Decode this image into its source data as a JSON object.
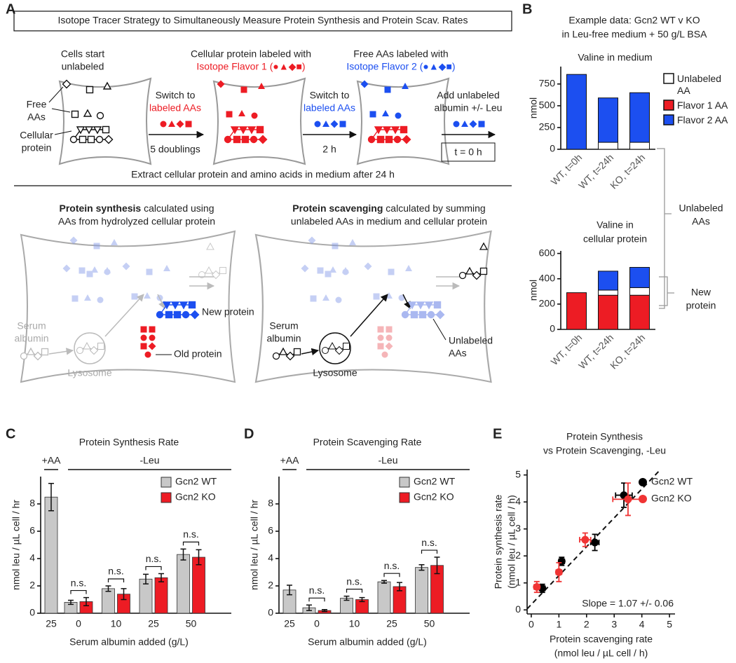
{
  "panel_labels": [
    "A",
    "B",
    "C",
    "D",
    "E"
  ],
  "panel_a": {
    "title": "Isotope Tracer Strategy to Simultaneously Measure Protein Synthesis and Protein Scav. Rates",
    "start": [
      "Cells start",
      "unlabeled"
    ],
    "free_aas": [
      "Free",
      "AAs"
    ],
    "cellular_protein": [
      "Cellular",
      "protein"
    ],
    "step1": {
      "top": "Switch to",
      "colored": "labeled AAs",
      "bottom": "5 doublings"
    },
    "state2": [
      "Cellular protein labeled with",
      "Isotope Flavor 1 (●▲◆■)"
    ],
    "step2": {
      "top": "Switch to",
      "colored": "labeled AAs",
      "bottom": "2 h"
    },
    "state3": [
      "Free AAs labeled with",
      "Isotope Flavor 2 (●▲◆■)"
    ],
    "step3": {
      "top": [
        "Add unlabeled",
        "albumin +/- Leu"
      ],
      "box": "t = 0 h"
    },
    "extract": "Extract cellular protein and amino acids in medium after 24 h",
    "synthesis": {
      "bold": "Protein synthesis",
      "rest": " calculated using",
      "line2": "AAs from hydrolyzed cellular protein"
    },
    "scavenging": {
      "bold": "Protein scavenging",
      "rest": " calculated by summing",
      "line2": "unlabeled AAs in medium and cellular protein"
    },
    "left_cell": {
      "serum": [
        "Serum",
        "albumin"
      ],
      "lysosome": "Lysosome",
      "new": "New protein",
      "old": "Old protein"
    },
    "right_cell": {
      "serum": [
        "Serum",
        "albumin"
      ],
      "lysosome": "Lysosome",
      "unlabeled": [
        "Unlabeled",
        "AAs"
      ]
    }
  },
  "chart_data": [
    {
      "type": "stacked-bar",
      "header": [
        "Example data: Gcn2 WT v KO",
        "in Leu-free medium + 50 g/L BSA"
      ],
      "title": "Valine in medium",
      "categories": [
        "WT, t=0h",
        "WT, t=24h",
        "KO, t=24h"
      ],
      "series": [
        {
          "name": "Unlabeled AA",
          "color": "#ffffff",
          "values": [
            0,
            80,
            80
          ]
        },
        {
          "name": "Flavor 1 AA",
          "color": "#ed1c24",
          "values": [
            0,
            0,
            0
          ]
        },
        {
          "name": "Flavor 2 AA",
          "color": "#1c4ff0",
          "values": [
            860,
            510,
            570
          ]
        }
      ],
      "ylabel": "nmol",
      "ylim": [
        0,
        950
      ],
      "yticks": [
        0,
        250,
        500,
        750
      ],
      "legend": "right"
    },
    {
      "type": "stacked-bar",
      "title": [
        "Valine in",
        "cellular protein"
      ],
      "categories": [
        "WT, t=0h",
        "WT, t=24h",
        "KO, t=24h"
      ],
      "series": [
        {
          "color": "#ed1c24",
          "values": [
            290,
            270,
            270
          ]
        },
        {
          "color": "#ffffff",
          "values": [
            0,
            40,
            60
          ]
        },
        {
          "color": "#1c4ff0",
          "values": [
            0,
            150,
            160
          ]
        }
      ],
      "ylabel": "nmol",
      "ylim": [
        0,
        620
      ],
      "yticks": [
        0,
        200,
        400,
        600
      ],
      "annotations": [
        [
          "Unlabeled",
          "AAs"
        ],
        [
          "New",
          "protein"
        ]
      ]
    },
    {
      "type": "bar",
      "title": "Protein Synthesis Rate",
      "group_labels": [
        "+AA",
        "-Leu"
      ],
      "categories": [
        "25",
        "0",
        "10",
        "25",
        "50"
      ],
      "series": [
        {
          "name": "Gcn2 WT",
          "color": "#c8c8c8",
          "values": [
            8.5,
            0.8,
            1.8,
            2.5,
            4.3
          ],
          "errors": [
            1.0,
            0.15,
            0.2,
            0.35,
            0.4
          ]
        },
        {
          "name": "Gcn2 KO",
          "color": "#ed1c24",
          "values": [
            null,
            0.85,
            1.4,
            2.6,
            4.1
          ],
          "errors": [
            null,
            0.3,
            0.4,
            0.3,
            0.55
          ]
        }
      ],
      "significance": [
        "n.s.",
        "n.s.",
        "n.s.",
        "n.s."
      ],
      "ylabel": "nmol leu / µL cell / hr",
      "xlabel": "Serum albumin added (g/L)",
      "ylim": [
        0,
        10
      ],
      "yticks": [
        0,
        2,
        4,
        6,
        8
      ],
      "legend": "top-right"
    },
    {
      "type": "bar",
      "title": "Protein Scavenging Rate",
      "group_labels": [
        "+AA",
        "-Leu"
      ],
      "categories": [
        "25",
        "0",
        "10",
        "25",
        "50"
      ],
      "series": [
        {
          "name": "Gcn2 WT",
          "color": "#c8c8c8",
          "values": [
            1.7,
            0.4,
            1.1,
            2.3,
            3.35
          ],
          "errors": [
            0.35,
            0.2,
            0.15,
            0.1,
            0.2
          ]
        },
        {
          "name": "Gcn2 KO",
          "color": "#ed1c24",
          "values": [
            null,
            0.2,
            1.0,
            1.95,
            3.5
          ],
          "errors": [
            null,
            0.07,
            0.15,
            0.3,
            0.6
          ]
        }
      ],
      "significance": [
        "n.s.",
        "n.s.",
        "n.s.",
        "n.s."
      ],
      "ylabel": "nmol leu / µL cell / hr",
      "xlabel": "Serum albumin added (g/L)",
      "ylim": [
        0,
        10
      ],
      "yticks": [
        0,
        2,
        4,
        6,
        8
      ],
      "legend": "top-right"
    },
    {
      "type": "scatter",
      "title": [
        "Protein Synthesis",
        "vs Protein Scavenging, -Leu"
      ],
      "series": [
        {
          "name": "Gcn2 WT",
          "color": "#000000",
          "x": [
            0.4,
            1.1,
            2.3,
            3.35
          ],
          "y": [
            0.8,
            1.8,
            2.5,
            4.25
          ],
          "xerr": [
            0.1,
            0.1,
            0.15,
            0.3
          ],
          "yerr": [
            0.15,
            0.15,
            0.3,
            0.45
          ]
        },
        {
          "name": "Gcn2 KO",
          "color": "#f03434",
          "x": [
            0.2,
            1.0,
            1.95,
            3.5
          ],
          "y": [
            0.85,
            1.4,
            2.6,
            4.1
          ],
          "xerr": [
            0.1,
            0.1,
            0.2,
            0.55
          ],
          "yerr": [
            0.2,
            0.35,
            0.25,
            0.6
          ]
        }
      ],
      "fit": {
        "slope": 1.07,
        "intercept": 0.2,
        "label": "Slope = 1.07 +/- 0.06"
      },
      "xlabel": [
        "Protein scavenging rate",
        "(nmol leu / µL cell / h)"
      ],
      "ylabel": [
        "Protein synthesis rate",
        "(nmol leu / µL cell / h)"
      ],
      "xlim": [
        -0.15,
        5.2
      ],
      "ylim": [
        -0.15,
        5.2
      ],
      "xticks": [
        0,
        1,
        2,
        3,
        4,
        5
      ],
      "yticks": [
        0,
        1,
        2,
        3,
        4,
        5
      ],
      "legend": "top-right"
    }
  ]
}
